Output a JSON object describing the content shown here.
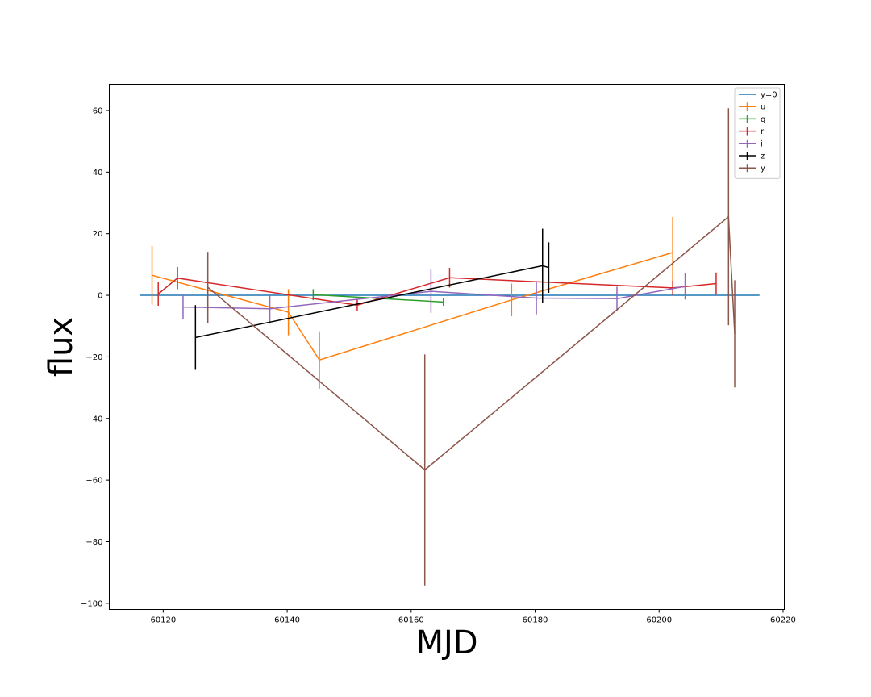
{
  "chart_data": {
    "type": "line",
    "xlabel": "MJD",
    "ylabel": "flux",
    "xlim": [
      60111.3,
      60220.2
    ],
    "ylim": [
      -102,
      68.5
    ],
    "x_ticks": [
      60120,
      60140,
      60160,
      60180,
      60200,
      60220
    ],
    "y_ticks": [
      -100,
      -80,
      -60,
      -40,
      -20,
      0,
      20,
      40,
      60
    ],
    "grid": false,
    "legend_position": "top-right",
    "reference_line": {
      "name": "y=0",
      "color": "#1f77b4",
      "x": [
        60116.2,
        60216.2
      ],
      "y": [
        0,
        0
      ]
    },
    "series": [
      {
        "name": "u",
        "color": "#ff7f0e",
        "x": [
          60118.2,
          60140.2,
          60145.2,
          60176.2,
          60202.2
        ],
        "y": [
          6.5,
          -5.5,
          -21,
          -1.5,
          13.9
        ],
        "err": [
          9.5,
          7.5,
          9.3,
          5.3,
          11.5
        ]
      },
      {
        "name": "g",
        "color": "#2ca02c",
        "x": [
          60144.2,
          60165.2
        ],
        "y": [
          0.2,
          -2.2
        ],
        "err": [
          1.8,
          1.2
        ]
      },
      {
        "name": "r",
        "color": "#d62728",
        "x": [
          60119.2,
          60122.3,
          60151.3,
          60166.2,
          60202.2,
          60209.2
        ],
        "y": [
          0.4,
          5.6,
          -3.2,
          5.7,
          2.4,
          3.8
        ],
        "err": [
          3.8,
          3.6,
          2.0,
          3.2,
          2.4,
          3.6
        ]
      },
      {
        "name": "i",
        "color": "#9467bd",
        "x": [
          60123.2,
          60137.2,
          60163.2,
          60180.2,
          60193.2,
          60204.2
        ],
        "y": [
          -3.8,
          -4.4,
          1.3,
          -0.9,
          -1.1,
          2.9
        ],
        "err": [
          4.0,
          4.8,
          7.0,
          5.3,
          3.9,
          4.3
        ]
      },
      {
        "name": "z",
        "color": "#000000",
        "x": [
          60125.2,
          60181.2,
          60182.2
        ],
        "y": [
          -13.7,
          9.6,
          9.0
        ],
        "err": [
          10.5,
          12.0,
          8.2
        ]
      },
      {
        "name": "y",
        "color": "#8c564b",
        "x": [
          60127.2,
          60162.2,
          60211.2,
          60212.2
        ],
        "y": [
          2.6,
          -56.7,
          25.5,
          -12.5
        ],
        "err": [
          11.5,
          37.5,
          35.2,
          17.4
        ]
      }
    ]
  }
}
